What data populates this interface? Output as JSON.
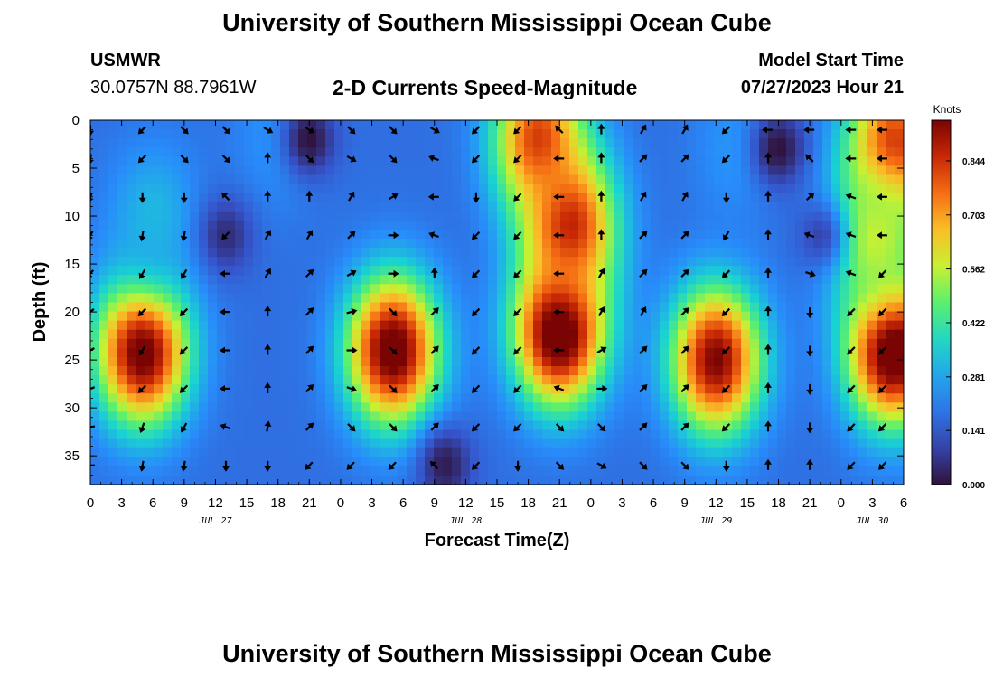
{
  "header": {
    "title": "University of Southern Mississippi Ocean Cube",
    "station": "USMWR",
    "coordinates": "30.0757N  88.7961W",
    "subtitle": "2-D Currents Speed-Magnitude",
    "model_start_label": "Model Start Time",
    "model_start_value": "07/27/2023 Hour 21"
  },
  "footer": {
    "title": "University of Southern Mississippi Ocean Cube"
  },
  "chart_data": {
    "type": "heatmap",
    "title": "2-D Currents Speed-Magnitude",
    "xlabel": "Forecast Time(Z)",
    "ylabel": "Depth (ft)",
    "x_ticks": [
      "0",
      "3",
      "6",
      "9",
      "12",
      "15",
      "18",
      "21",
      "0",
      "3",
      "6",
      "9",
      "12",
      "15",
      "18",
      "21",
      "0",
      "3",
      "6",
      "9",
      "12",
      "15",
      "18",
      "21",
      "0",
      "3",
      "6"
    ],
    "x_start_hour": 0,
    "x_end_hour": 78,
    "date_labels": [
      {
        "label": "JUL 27",
        "hour": 12
      },
      {
        "label": "JUL 28",
        "hour": 36
      },
      {
        "label": "JUL 29",
        "hour": 60
      },
      {
        "label": "JUL 30",
        "hour": 75
      }
    ],
    "y_ticks": [
      0,
      5,
      10,
      15,
      20,
      25,
      30,
      35
    ],
    "ylim": [
      0,
      38
    ],
    "colorbar": {
      "unit": "Knots",
      "min": 0.0,
      "max": 0.95,
      "ticks": [
        "0.000",
        "0.141",
        "0.281",
        "0.422",
        "0.562",
        "0.703",
        "0.844"
      ],
      "tick_values": [
        0.0,
        0.141,
        0.281,
        0.422,
        0.562,
        0.703,
        0.844
      ]
    },
    "speed_blobs": [
      {
        "hour": 5,
        "depth": 24,
        "value": 0.9
      },
      {
        "hour": 29,
        "depth": 24,
        "value": 0.9
      },
      {
        "hour": 45,
        "depth": 22,
        "value": 0.95
      },
      {
        "hour": 60,
        "depth": 25,
        "value": 0.85
      },
      {
        "hour": 77,
        "depth": 24,
        "value": 0.95
      },
      {
        "hour": 43,
        "depth": 2,
        "value": 0.75
      },
      {
        "hour": 46,
        "depth": 11,
        "value": 0.8
      },
      {
        "hour": 77,
        "depth": 3,
        "value": 0.8
      },
      {
        "hour": 75,
        "depth": 12,
        "value": 0.55
      },
      {
        "hour": 18,
        "depth": 2,
        "value": 0.25
      },
      {
        "hour": 62,
        "depth": 3,
        "value": 0.25
      },
      {
        "hour": 6,
        "depth": 10,
        "value": 0.3
      }
    ],
    "speed_lows": [
      {
        "hour": 21,
        "depth": 2,
        "value": 0.0
      },
      {
        "hour": 66,
        "depth": 3,
        "value": 0.0
      },
      {
        "hour": 13,
        "depth": 12,
        "value": 0.05
      },
      {
        "hour": 34,
        "depth": 36,
        "value": 0.02
      },
      {
        "hour": 70,
        "depth": 12,
        "value": 0.1
      }
    ],
    "background_speed": 0.18,
    "arrow_hours": [
      0,
      5,
      9,
      13,
      17,
      21,
      25,
      29,
      33,
      37,
      41,
      45,
      49,
      53,
      57,
      61,
      65,
      69,
      73,
      76
    ],
    "arrow_depths": [
      1,
      4,
      8,
      12,
      16,
      20,
      24,
      28,
      32,
      36
    ],
    "arrow_directions_deg": [
      [
        90,
        100,
        110,
        120,
        130,
        140,
        150,
        160,
        170,
        180
      ],
      [
        135,
        135,
        90,
        100,
        120,
        135,
        120,
        135,
        110,
        100
      ],
      [
        45,
        45,
        90,
        100,
        120,
        135,
        135,
        135,
        120,
        100
      ],
      [
        45,
        45,
        225,
        135,
        180,
        180,
        180,
        180,
        200,
        90
      ],
      [
        30,
        270,
        270,
        300,
        300,
        270,
        270,
        270,
        280,
        90
      ],
      [
        30,
        45,
        270,
        300,
        315,
        315,
        315,
        315,
        315,
        135
      ],
      [
        45,
        30,
        300,
        315,
        330,
        345,
        0,
        20,
        45,
        135
      ],
      [
        45,
        45,
        330,
        0,
        0,
        45,
        45,
        45,
        45,
        135
      ],
      [
        30,
        200,
        180,
        200,
        270,
        315,
        315,
        315,
        315,
        225
      ],
      [
        135,
        135,
        90,
        135,
        135,
        135,
        135,
        135,
        135,
        135
      ],
      [
        135,
        135,
        135,
        135,
        135,
        135,
        135,
        135,
        135,
        90
      ],
      [
        225,
        180,
        180,
        180,
        180,
        180,
        180,
        200,
        45,
        45
      ],
      [
        270,
        270,
        270,
        270,
        300,
        300,
        330,
        0,
        45,
        30
      ],
      [
        300,
        315,
        300,
        315,
        315,
        300,
        315,
        315,
        315,
        45
      ],
      [
        300,
        315,
        300,
        315,
        315,
        315,
        315,
        315,
        315,
        45
      ],
      [
        135,
        135,
        90,
        120,
        135,
        135,
        135,
        135,
        135,
        90
      ],
      [
        180,
        270,
        270,
        270,
        270,
        270,
        270,
        270,
        270,
        270
      ],
      [
        180,
        225,
        315,
        200,
        20,
        90,
        90,
        90,
        90,
        270
      ],
      [
        180,
        180,
        200,
        200,
        200,
        135,
        135,
        135,
        135,
        135
      ],
      [
        180,
        180,
        180,
        180,
        135,
        135,
        135,
        135,
        135,
        135
      ]
    ]
  }
}
